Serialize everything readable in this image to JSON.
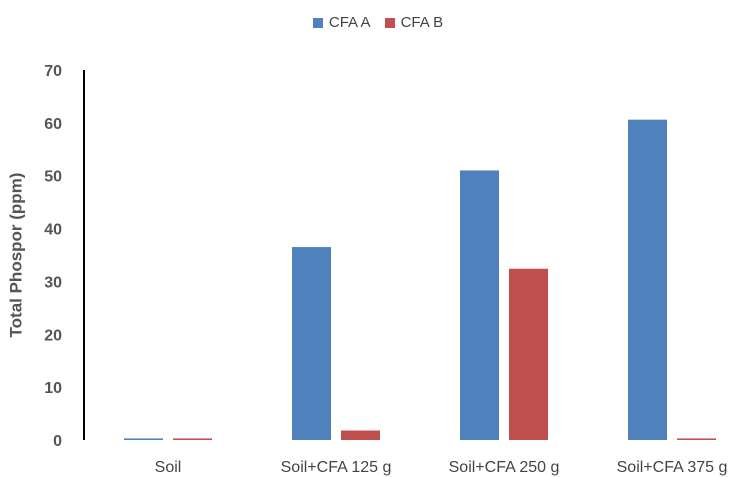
{
  "chart_data": {
    "type": "bar",
    "categories": [
      "Soil",
      "Soil+CFA 125 g",
      "Soil+CFA 250 g",
      "Soil+CFA 375 g"
    ],
    "series": [
      {
        "name": "CFA A",
        "color": "#4f81bd",
        "values": [
          0.3,
          36.5,
          51,
          60.6
        ]
      },
      {
        "name": "CFA B",
        "color": "#c0504d",
        "values": [
          0.3,
          1.8,
          32.4,
          0.3
        ]
      }
    ],
    "ylabel": "Total Phospor (ppm)",
    "xlabel": "",
    "ylim": [
      0,
      70
    ],
    "yticks": [
      "0",
      "10",
      "20",
      "30",
      "40",
      "50",
      "60",
      "70"
    ],
    "grid": false,
    "legend_position": "top"
  }
}
